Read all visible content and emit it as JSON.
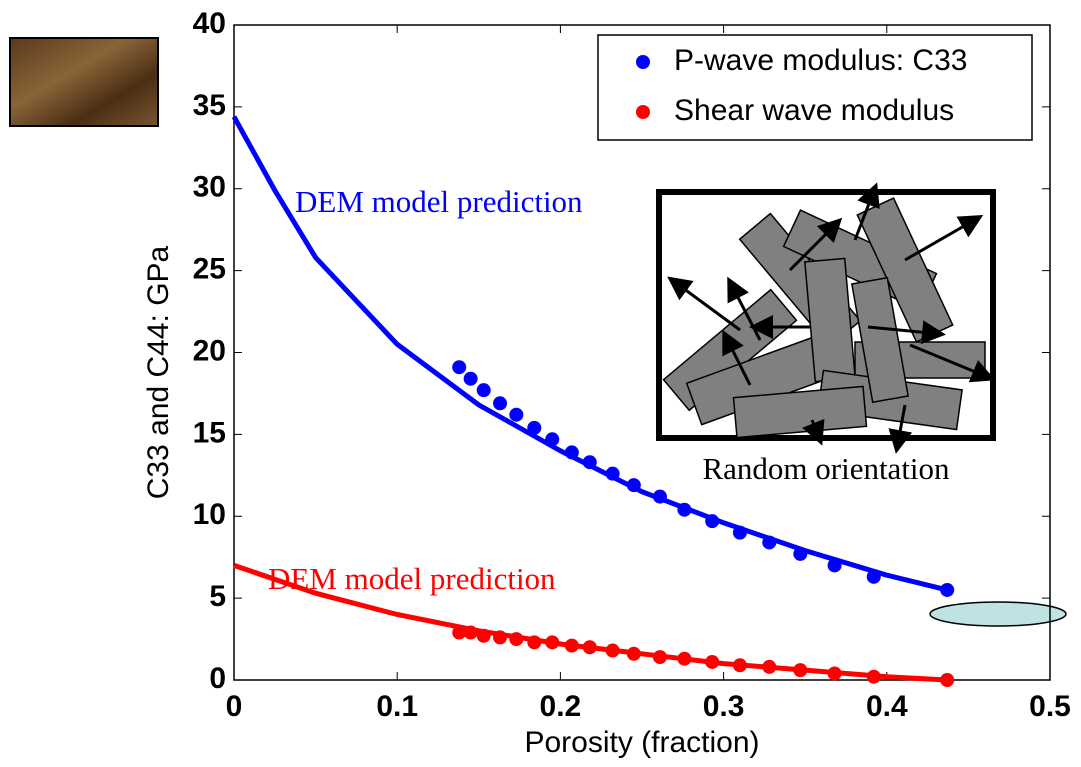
{
  "chart_data": {
    "type": "scatter",
    "xlabel": "Porosity (fraction)",
    "ylabel": "C33 and C44: GPa",
    "xlim": [
      0,
      0.5
    ],
    "ylim": [
      0,
      40
    ],
    "xticks": [
      0,
      0.1,
      0.2,
      0.3,
      0.4,
      0.5
    ],
    "yticks": [
      0,
      5,
      10,
      15,
      20,
      25,
      30,
      35,
      40
    ],
    "legend": "upper right",
    "x": [
      0.138,
      0.145,
      0.153,
      0.163,
      0.173,
      0.184,
      0.195,
      0.207,
      0.218,
      0.232,
      0.245,
      0.261,
      0.276,
      0.293,
      0.31,
      0.328,
      0.347,
      0.368,
      0.392,
      0.437
    ],
    "series": [
      {
        "name": "P-wave modulus: C33",
        "color": "#0000ff",
        "values": [
          19.1,
          18.4,
          17.7,
          16.9,
          16.2,
          15.4,
          14.7,
          13.9,
          13.3,
          12.6,
          11.9,
          11.2,
          10.4,
          9.7,
          9.0,
          8.4,
          7.7,
          7.0,
          6.3,
          5.5
        ]
      },
      {
        "name": "Shear wave modulus",
        "color": "#ff0000",
        "values": [
          2.9,
          2.9,
          2.7,
          2.6,
          2.5,
          2.3,
          2.3,
          2.1,
          2.0,
          1.8,
          1.6,
          1.4,
          1.3,
          1.1,
          0.9,
          0.8,
          0.6,
          0.4,
          0.2,
          0.0
        ]
      }
    ],
    "curves": [
      {
        "label": "DEM model prediction",
        "color": "#0000ff",
        "x": [
          0,
          0.025,
          0.05,
          0.1,
          0.15,
          0.2,
          0.25,
          0.3,
          0.35,
          0.4,
          0.437
        ],
        "values": [
          34.4,
          29.9,
          25.8,
          20.5,
          16.8,
          14.0,
          11.5,
          9.6,
          7.9,
          6.4,
          5.5
        ]
      },
      {
        "label": "DEM model prediction",
        "color": "#ff0000",
        "x": [
          0,
          0.05,
          0.1,
          0.15,
          0.2,
          0.25,
          0.3,
          0.35,
          0.4,
          0.437
        ],
        "values": [
          7.0,
          5.3,
          4.0,
          3.0,
          2.2,
          1.6,
          1.0,
          0.6,
          0.2,
          0.0
        ]
      }
    ],
    "inset_label": "Random orientation"
  }
}
